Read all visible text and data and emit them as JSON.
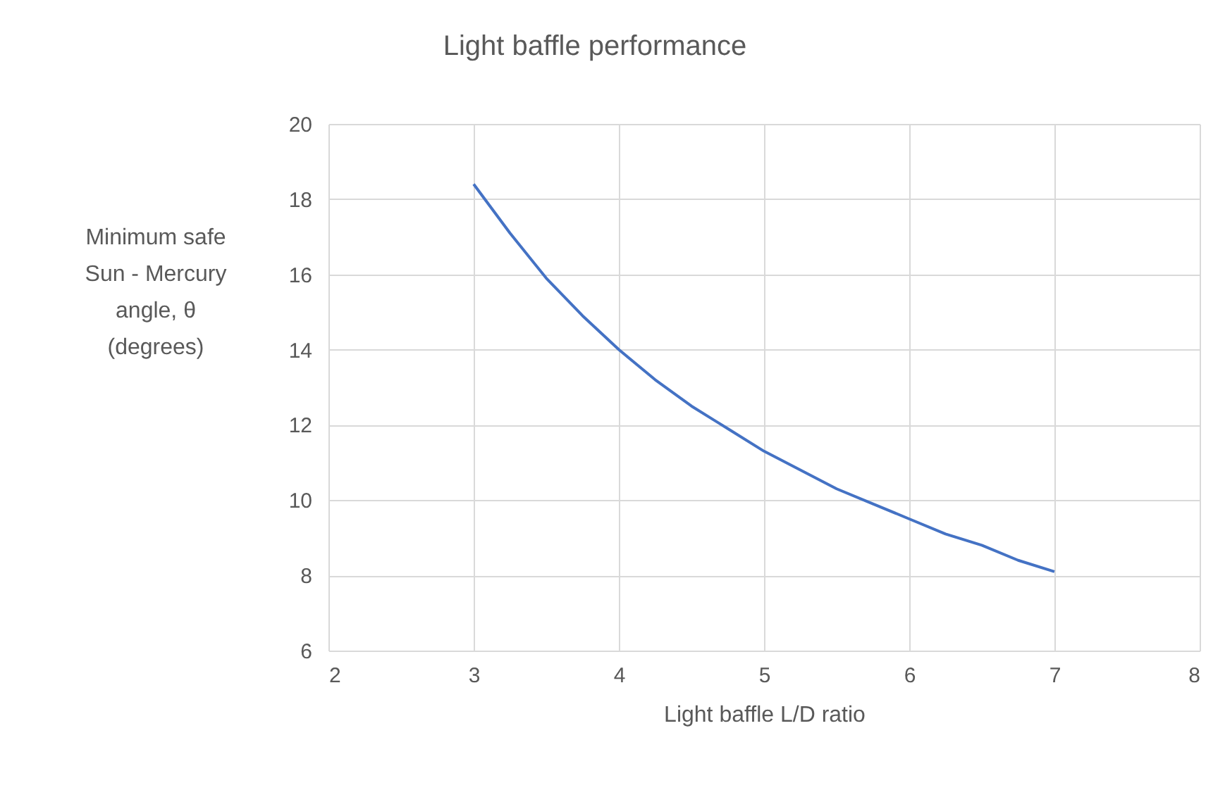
{
  "chart_data": {
    "type": "line",
    "title": "Light baffle performance",
    "xlabel": "Light baffle L/D ratio",
    "ylabel": "Minimum safe\nSun - Mercury\nangle, θ\n(degrees)",
    "x": [
      3,
      3.25,
      3.5,
      3.75,
      4,
      4.25,
      4.5,
      4.75,
      5,
      5.25,
      5.5,
      5.75,
      6,
      6.25,
      6.5,
      6.75,
      7
    ],
    "series": [
      {
        "color": "#4472c4",
        "values": [
          18.4,
          17.1,
          15.9,
          14.9,
          14.0,
          13.2,
          12.5,
          11.9,
          11.3,
          10.8,
          10.3,
          9.9,
          9.5,
          9.1,
          8.8,
          8.4,
          8.1
        ]
      }
    ],
    "xlim": [
      2,
      8
    ],
    "xticks": [
      2,
      3,
      4,
      5,
      6,
      7,
      8
    ],
    "ylim": [
      6,
      20
    ],
    "yticks": [
      6,
      8,
      10,
      12,
      14,
      16,
      18,
      20
    ],
    "grid": true,
    "marker": "none",
    "line_style": "solid"
  }
}
